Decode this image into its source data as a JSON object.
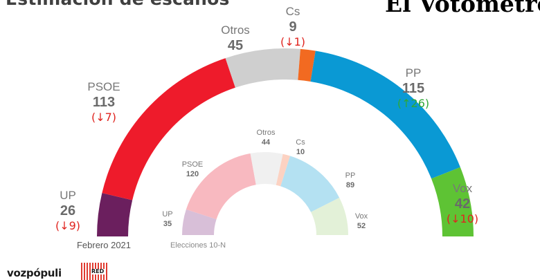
{
  "header": {
    "title": "Estimación de escaños",
    "brand": "El Votómetro"
  },
  "footer": {
    "publisher": "vozpópuli",
    "partner": "RED"
  },
  "chart_data": [
    {
      "type": "semicircle",
      "caption": "Febrero 2021",
      "total": 350,
      "series": [
        {
          "name": "UP",
          "seats": 26,
          "change": "(↓9)",
          "change_dir": "down",
          "color": "#6b1f5e"
        },
        {
          "name": "PSOE",
          "seats": 113,
          "change": "(↓7)",
          "change_dir": "down",
          "color": "#ee1b2b"
        },
        {
          "name": "Otros",
          "seats": 45,
          "change": "",
          "change_dir": "",
          "color": "#cfcfcf"
        },
        {
          "name": "Cs",
          "seats": 9,
          "change": "(↓1)",
          "change_dir": "down",
          "color": "#f26a21"
        },
        {
          "name": "PP",
          "seats": 115,
          "change": "(↑26)",
          "change_dir": "up",
          "color": "#0a99d4"
        },
        {
          "name": "Vox",
          "seats": 42,
          "change": "(↓10)",
          "change_dir": "down",
          "color": "#5ec334"
        }
      ]
    },
    {
      "type": "semicircle",
      "caption": "Elecciones 10-N",
      "total": 350,
      "series": [
        {
          "name": "UP",
          "seats": 35,
          "color": "#d8bfd8"
        },
        {
          "name": "PSOE",
          "seats": 120,
          "color": "#f8b9c0"
        },
        {
          "name": "Otros",
          "seats": 44,
          "color": "#f0f0f0"
        },
        {
          "name": "Cs",
          "seats": 10,
          "color": "#fcd2c2"
        },
        {
          "name": "PP",
          "seats": 89,
          "color": "#b4e1f2"
        },
        {
          "name": "Vox",
          "seats": 52,
          "color": "#e3f1d8"
        }
      ]
    }
  ],
  "colors": {
    "up_change": "#2ea836",
    "down_change": "#e0241f",
    "label": "#777777",
    "value": "#6a6a6a"
  }
}
